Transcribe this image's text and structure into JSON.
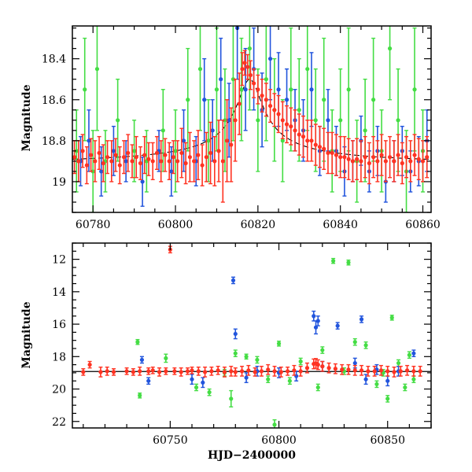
{
  "chart_data": [
    {
      "type": "scatter",
      "title": "",
      "xlabel": "",
      "ylabel": "Magnitude",
      "xlim": [
        60775,
        60862
      ],
      "ylim": [
        19.15,
        18.24
      ],
      "y_inverted": true,
      "grid": false,
      "x_ticks": [
        60780,
        60800,
        60820,
        60840,
        60860
      ],
      "x_tick_labels": [
        "60780",
        "60800",
        "60820",
        "60840",
        "60860"
      ],
      "y_ticks": [
        18.4,
        18.6,
        18.8,
        19
      ],
      "y_tick_labels": [
        "18.4",
        "18.6",
        "18.8",
        "19"
      ],
      "series": [
        {
          "color": "#44dd44",
          "x": [
            60776,
            60778,
            60780,
            60781,
            60783,
            60786,
            60790,
            60793,
            60797,
            60800,
            60803,
            60806,
            60808,
            60810,
            60812,
            60814,
            60816,
            60818,
            60820,
            60822,
            60824,
            60826,
            60828,
            60830,
            60832,
            60834,
            60836,
            60838,
            60840,
            60842,
            60844,
            60846,
            60848,
            60850,
            60852,
            60854,
            60856,
            60858,
            60860
          ],
          "y": [
            18.85,
            18.55,
            18.95,
            18.45,
            18.9,
            18.7,
            18.85,
            18.9,
            18.75,
            18.85,
            18.6,
            18.45,
            18.8,
            18.55,
            18.7,
            18.5,
            18.55,
            18.35,
            18.7,
            18.5,
            18.65,
            18.8,
            18.55,
            18.65,
            18.45,
            18.7,
            18.6,
            18.85,
            18.7,
            18.55,
            18.9,
            18.75,
            18.6,
            18.85,
            18.35,
            18.7,
            18.95,
            18.55,
            18.85
          ],
          "err": [
            0.2,
            0.25,
            0.2,
            0.3,
            0.15,
            0.2,
            0.15,
            0.15,
            0.2,
            0.2,
            0.25,
            0.3,
            0.2,
            0.3,
            0.25,
            0.3,
            0.25,
            0.3,
            0.25,
            0.3,
            0.25,
            0.2,
            0.3,
            0.25,
            0.3,
            0.25,
            0.3,
            0.2,
            0.25,
            0.3,
            0.2,
            0.25,
            0.3,
            0.2,
            0.25,
            0.25,
            0.2,
            0.3,
            0.2
          ]
        },
        {
          "color": "#2255dd",
          "x": [
            60777,
            60779,
            60782,
            60785,
            60788,
            60792,
            60796,
            60799,
            60802,
            60805,
            60807,
            60809,
            60811,
            60813,
            60815,
            60817,
            60819,
            60821,
            60823,
            60825,
            60827,
            60829,
            60831,
            60833,
            60835,
            60837,
            60839,
            60841,
            60843,
            60845,
            60847,
            60849,
            60851,
            60853,
            60855,
            60857,
            60859,
            60861
          ],
          "y": [
            18.9,
            18.8,
            18.95,
            18.85,
            18.9,
            19.0,
            18.85,
            18.95,
            18.8,
            18.9,
            18.6,
            18.75,
            18.5,
            18.7,
            18.25,
            18.55,
            18.45,
            18.65,
            18.4,
            18.55,
            18.6,
            18.7,
            18.75,
            18.55,
            18.85,
            18.7,
            18.85,
            18.95,
            18.9,
            18.8,
            18.95,
            18.85,
            19.0,
            18.9,
            18.85,
            18.95,
            18.9,
            18.8
          ],
          "err": [
            0.12,
            0.15,
            0.12,
            0.12,
            0.1,
            0.12,
            0.1,
            0.12,
            0.15,
            0.12,
            0.2,
            0.15,
            0.2,
            0.18,
            0.25,
            0.2,
            0.2,
            0.18,
            0.2,
            0.18,
            0.15,
            0.15,
            0.15,
            0.18,
            0.12,
            0.15,
            0.12,
            0.12,
            0.1,
            0.12,
            0.1,
            0.12,
            0.1,
            0.1,
            0.12,
            0.1,
            0.12,
            0.15
          ]
        },
        {
          "color": "#ff3322",
          "x": [
            60775.5,
            60776.5,
            60777.5,
            60778.5,
            60779.5,
            60780.5,
            60781.5,
            60782.5,
            60783.5,
            60784.5,
            60785.5,
            60786.5,
            60787.5,
            60788.5,
            60789.5,
            60790.5,
            60791.5,
            60792.5,
            60793.5,
            60794.5,
            60795.5,
            60796.5,
            60797.5,
            60798.5,
            60799.5,
            60800.5,
            60801.5,
            60802.5,
            60803.5,
            60804.5,
            60805.5,
            60806.5,
            60807.5,
            60808.5,
            60809.5,
            60810.5,
            60811.5,
            60812.5,
            60813.5,
            60814.5,
            60815.5,
            60816.2,
            60816.8,
            60817.5,
            60818.2,
            60819,
            60820,
            60821,
            60822,
            60823,
            60824,
            60825,
            60826,
            60827,
            60828,
            60829,
            60830,
            60831,
            60832,
            60833,
            60834,
            60835,
            60836,
            60837,
            60838,
            60839,
            60840,
            60841,
            60842,
            60843,
            60844,
            60845,
            60846,
            60847,
            60848,
            60849,
            60850,
            60851,
            60852,
            60853,
            60854,
            60855,
            60856,
            60857,
            60858,
            60859,
            60860,
            60861
          ],
          "y": [
            18.88,
            18.9,
            18.85,
            18.92,
            18.87,
            18.9,
            18.86,
            18.91,
            18.88,
            18.9,
            18.87,
            18.92,
            18.88,
            18.86,
            18.9,
            18.88,
            18.91,
            18.87,
            18.89,
            18.9,
            18.86,
            18.9,
            18.87,
            18.9,
            18.88,
            18.9,
            18.86,
            18.91,
            18.88,
            18.9,
            18.87,
            18.92,
            18.88,
            18.86,
            18.9,
            18.85,
            18.9,
            18.8,
            18.82,
            18.7,
            18.62,
            18.45,
            18.42,
            18.44,
            18.48,
            18.52,
            18.55,
            18.58,
            18.6,
            18.63,
            18.65,
            18.67,
            18.7,
            18.72,
            18.73,
            18.75,
            18.77,
            18.78,
            18.8,
            18.8,
            18.82,
            18.83,
            18.84,
            18.86,
            18.86,
            18.87,
            18.88,
            18.88,
            18.89,
            18.9,
            18.89,
            18.9,
            18.88,
            18.91,
            18.88,
            18.9,
            18.87,
            18.9,
            18.88,
            18.9,
            18.87,
            18.91,
            18.88,
            18.9,
            18.87,
            18.89,
            18.9,
            18.88
          ],
          "err": [
            0.08,
            0.1,
            0.08,
            0.09,
            0.08,
            0.1,
            0.08,
            0.09,
            0.08,
            0.1,
            0.08,
            0.09,
            0.08,
            0.09,
            0.08,
            0.1,
            0.08,
            0.09,
            0.08,
            0.09,
            0.08,
            0.1,
            0.08,
            0.09,
            0.08,
            0.1,
            0.12,
            0.1,
            0.12,
            0.1,
            0.12,
            0.1,
            0.12,
            0.15,
            0.12,
            0.15,
            0.2,
            0.2,
            0.18,
            0.2,
            0.15,
            0.08,
            0.06,
            0.06,
            0.07,
            0.07,
            0.07,
            0.08,
            0.08,
            0.08,
            0.08,
            0.09,
            0.09,
            0.09,
            0.09,
            0.1,
            0.1,
            0.1,
            0.1,
            0.1,
            0.1,
            0.1,
            0.1,
            0.1,
            0.1,
            0.1,
            0.1,
            0.1,
            0.1,
            0.1,
            0.1,
            0.1,
            0.1,
            0.1,
            0.1,
            0.1,
            0.1,
            0.1,
            0.1,
            0.1,
            0.1,
            0.1,
            0.1,
            0.1,
            0.1,
            0.1,
            0.1,
            0.1
          ]
        }
      ],
      "model_curve": {
        "color": "#000000",
        "baseline": 18.92,
        "peak_x": 60818,
        "amplitude": 0.42,
        "width": 4.5
      }
    },
    {
      "type": "scatter",
      "title": "",
      "xlabel": "HJD−2400000",
      "ylabel": "Magnitude",
      "xlim": [
        60705,
        60870
      ],
      "ylim": [
        22.4,
        11
      ],
      "y_inverted": true,
      "grid": false,
      "x_ticks": [
        60750,
        60800,
        60850
      ],
      "x_tick_labels": [
        "60750",
        "60800",
        "60850"
      ],
      "y_ticks": [
        12,
        14,
        16,
        18,
        20,
        22
      ],
      "y_tick_labels": [
        "12",
        "14",
        "16",
        "18",
        "20",
        "22"
      ],
      "series": [
        {
          "color": "#44dd44",
          "x": [
            60735,
            60736,
            60748,
            60762,
            60768,
            60775,
            60778,
            60780,
            60785,
            60790,
            60795,
            60798,
            60800,
            60805,
            60810,
            60818,
            60820,
            60825,
            60830,
            60832,
            60835,
            60840,
            60845,
            60848,
            60850,
            60852,
            60855,
            60858,
            60860,
            60862
          ],
          "y": [
            17.1,
            20.4,
            18.1,
            19.9,
            20.2,
            19.0,
            20.6,
            17.8,
            18.0,
            18.2,
            19.4,
            22.2,
            17.2,
            19.5,
            18.3,
            19.9,
            17.6,
            12.1,
            18.9,
            12.2,
            17.1,
            17.3,
            19.7,
            19.0,
            20.6,
            15.6,
            18.4,
            19.9,
            17.9,
            19.4
          ],
          "err": [
            0.15,
            0.15,
            0.25,
            0.2,
            0.2,
            0.2,
            0.5,
            0.2,
            0.15,
            0.2,
            0.2,
            0.3,
            0.15,
            0.2,
            0.2,
            0.2,
            0.2,
            0.15,
            0.2,
            0.15,
            0.2,
            0.2,
            0.2,
            0.2,
            0.2,
            0.15,
            0.2,
            0.2,
            0.2,
            0.2
          ]
        },
        {
          "color": "#2255dd",
          "x": [
            60737,
            60740,
            60760,
            60765,
            60779,
            60780,
            60785,
            60790,
            60800,
            60808,
            60816,
            60817,
            60818,
            60820,
            60827,
            60835,
            60838,
            60840,
            60845,
            60850,
            60855,
            60862
          ],
          "y": [
            18.2,
            19.5,
            19.4,
            19.6,
            13.3,
            16.6,
            19.3,
            18.9,
            19.0,
            19.2,
            15.5,
            16.2,
            15.8,
            18.6,
            16.1,
            18.4,
            15.7,
            19.4,
            18.8,
            19.5,
            18.9,
            17.8
          ],
          "err": [
            0.2,
            0.2,
            0.3,
            0.3,
            0.2,
            0.3,
            0.3,
            0.3,
            0.3,
            0.3,
            0.3,
            0.4,
            0.3,
            0.3,
            0.2,
            0.3,
            0.2,
            0.3,
            0.3,
            0.3,
            0.3,
            0.2
          ]
        },
        {
          "color": "#ff3322",
          "x": [
            60710,
            60713,
            60718,
            60721,
            60724,
            60730,
            60733,
            60736,
            60740,
            60742,
            60745,
            60748,
            60750,
            60752,
            60755,
            60758,
            60760,
            60763,
            60766,
            60769,
            60772,
            60775,
            60778,
            60780,
            60783,
            60786,
            60789,
            60792,
            60795,
            60798,
            60801,
            60804,
            60807,
            60810,
            60813,
            60816,
            60817,
            60818,
            60820,
            60823,
            60826,
            60829,
            60832,
            60835,
            60838,
            60841,
            60844,
            60847,
            60850,
            60853,
            60856,
            60859,
            60862,
            60865
          ],
          "y": [
            18.95,
            18.5,
            18.95,
            18.9,
            18.95,
            18.9,
            18.95,
            18.9,
            18.9,
            18.85,
            18.95,
            18.9,
            11.4,
            18.9,
            18.95,
            18.9,
            18.85,
            18.9,
            18.95,
            18.9,
            18.85,
            18.95,
            18.9,
            18.95,
            18.9,
            18.85,
            18.95,
            18.9,
            18.8,
            18.9,
            18.95,
            18.9,
            18.85,
            18.9,
            18.7,
            18.45,
            18.42,
            18.5,
            18.6,
            18.7,
            18.75,
            18.8,
            18.8,
            18.85,
            18.85,
            18.9,
            18.9,
            18.85,
            18.9,
            18.95,
            18.9,
            18.85,
            18.9,
            18.9
          ],
          "err": [
            0.2,
            0.2,
            0.3,
            0.25,
            0.2,
            0.2,
            0.2,
            0.25,
            0.2,
            0.2,
            0.25,
            0.2,
            0.2,
            0.2,
            0.25,
            0.2,
            0.2,
            0.25,
            0.3,
            0.25,
            0.25,
            0.3,
            0.3,
            0.25,
            0.3,
            0.3,
            0.25,
            0.3,
            0.3,
            0.3,
            0.3,
            0.25,
            0.3,
            0.3,
            0.3,
            0.3,
            0.3,
            0.3,
            0.3,
            0.3,
            0.3,
            0.3,
            0.3,
            0.3,
            0.3,
            0.3,
            0.3,
            0.3,
            0.3,
            0.3,
            0.3,
            0.3,
            0.3,
            0.3
          ]
        }
      ],
      "hline": {
        "y": 18.92,
        "color": "#000000"
      }
    }
  ]
}
